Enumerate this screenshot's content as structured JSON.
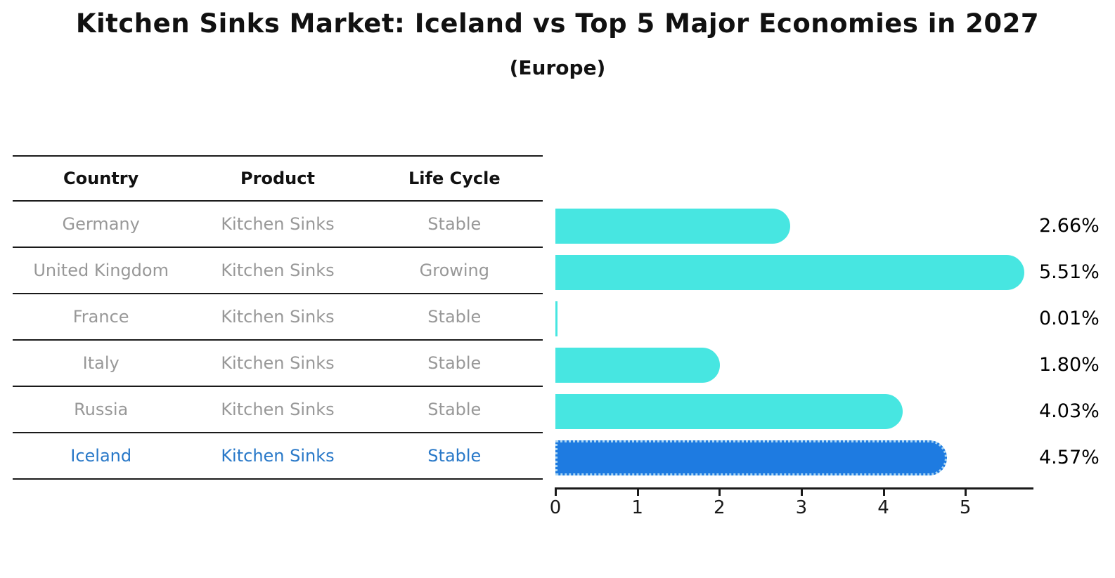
{
  "title": "Kitchen Sinks Market: Iceland vs Top 5 Major Economies in 2027",
  "subtitle": "(Europe)",
  "table": {
    "headers": [
      "Country",
      "Product",
      "Life Cycle"
    ],
    "rows": [
      {
        "country": "Germany",
        "product": "Kitchen Sinks",
        "life_cycle": "Stable"
      },
      {
        "country": "United Kingdom",
        "product": "Kitchen Sinks",
        "life_cycle": "Growing"
      },
      {
        "country": "France",
        "product": "Kitchen Sinks",
        "life_cycle": "Stable"
      },
      {
        "country": "Italy",
        "product": "Kitchen Sinks",
        "life_cycle": "Stable"
      },
      {
        "country": "Russia",
        "product": "Kitchen Sinks",
        "life_cycle": "Stable"
      },
      {
        "country": "Iceland",
        "product": "Kitchen Sinks",
        "life_cycle": "Stable"
      }
    ]
  },
  "chart_data": {
    "type": "bar",
    "orientation": "horizontal",
    "categories": [
      "Germany",
      "United Kingdom",
      "France",
      "Italy",
      "Russia",
      "Iceland"
    ],
    "values": [
      2.66,
      5.51,
      0.01,
      1.8,
      4.03,
      4.57
    ],
    "value_labels": [
      "2.66%",
      "5.51%",
      "0.01%",
      "1.80%",
      "4.03%",
      "4.57%"
    ],
    "x_ticks": [
      0,
      1,
      2,
      3,
      4,
      5
    ],
    "x_tick_labels": [
      "0",
      "1",
      "2",
      "3",
      "4",
      "5"
    ],
    "xlim": [
      0,
      5.83
    ],
    "grid": false,
    "legend": "none",
    "bar_color": "#47e6e1",
    "highlight_index": 5,
    "highlight_bar_color": "#1e7be1",
    "highlight_text_color": "#2878c8",
    "highlight_border_color": "#a8d4f2"
  }
}
